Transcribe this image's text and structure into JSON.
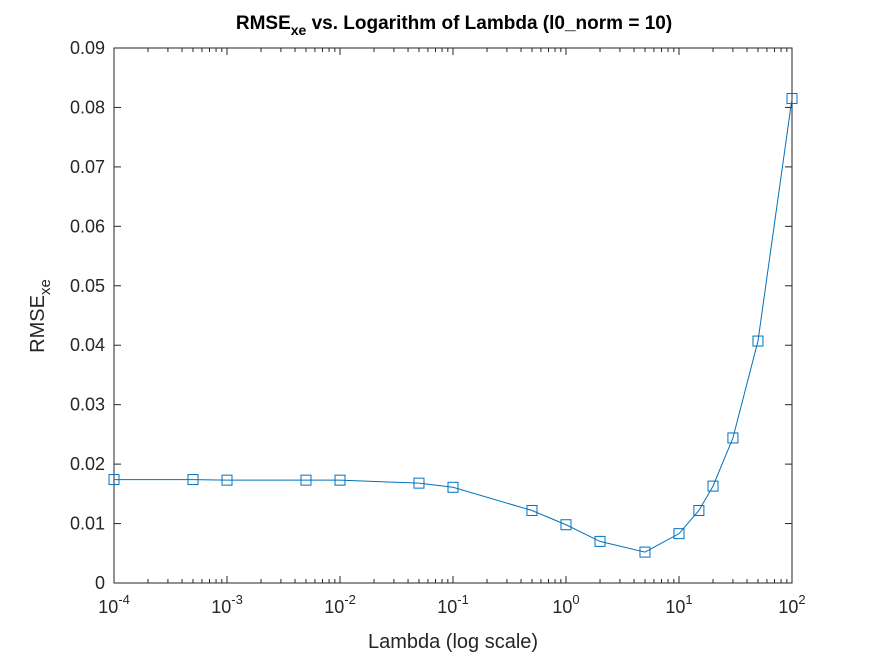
{
  "chart_data": {
    "type": "line",
    "title": "RMSE",
    "title_sub": "xe",
    "title_rest": " vs. Logarithm of Lambda (l0_norm = 10)",
    "xlabel": "Lambda (log scale)",
    "ylabel": "RMSE",
    "ylabel_sub": "xe",
    "xscale": "log",
    "xlim": [
      0.0001,
      100
    ],
    "ylim": [
      0,
      0.09
    ],
    "x_ticks": [
      0.0001,
      0.001,
      0.01,
      0.1,
      1,
      10,
      100
    ],
    "x_tick_labels": [
      {
        "base": "10",
        "exp": "-4"
      },
      {
        "base": "10",
        "exp": "-3"
      },
      {
        "base": "10",
        "exp": "-2"
      },
      {
        "base": "10",
        "exp": "-1"
      },
      {
        "base": "10",
        "exp": "0"
      },
      {
        "base": "10",
        "exp": "1"
      },
      {
        "base": "10",
        "exp": "2"
      }
    ],
    "y_ticks": [
      0,
      0.01,
      0.02,
      0.03,
      0.04,
      0.05,
      0.06,
      0.07,
      0.08,
      0.09
    ],
    "y_tick_labels": [
      "0",
      "0.01",
      "0.02",
      "0.03",
      "0.04",
      "0.05",
      "0.06",
      "0.07",
      "0.08",
      "0.09"
    ],
    "grid": false,
    "marker": "square",
    "color": "#0072BD",
    "series": [
      {
        "x": [
          0.0001,
          0.0005,
          0.001,
          0.005,
          0.01,
          0.05,
          0.1,
          0.5,
          1,
          2,
          5,
          10,
          15,
          20,
          30,
          50,
          100
        ],
        "y": [
          0.0174,
          0.0174,
          0.0173,
          0.0173,
          0.0173,
          0.0168,
          0.0161,
          0.0122,
          0.0098,
          0.007,
          0.0052,
          0.0083,
          0.0122,
          0.0163,
          0.0244,
          0.0407,
          0.0815
        ]
      }
    ]
  }
}
